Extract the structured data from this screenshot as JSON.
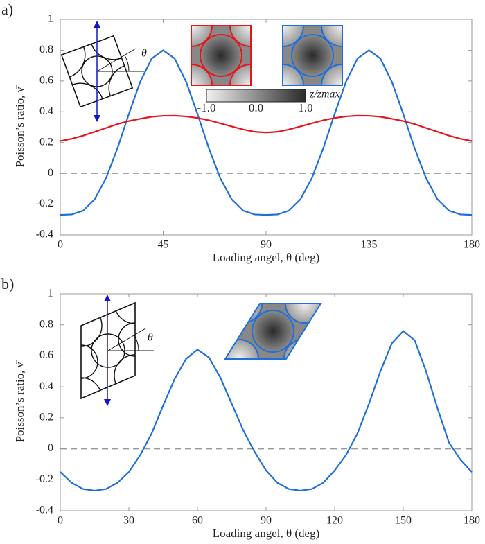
{
  "chart_data": [
    {
      "type": "line",
      "panel_label": "a)",
      "xlabel": "Loading angel, θ (deg)",
      "ylabel": "Poisson’s ratio, ν̄",
      "angle_label": "θ",
      "xlim": [
        0,
        180
      ],
      "xticks": [
        0,
        45,
        90,
        135,
        180
      ],
      "ylim": [
        -0.4,
        1
      ],
      "yticks": [
        -0.4,
        -0.2,
        0,
        0.2,
        0.4,
        0.6,
        0.8,
        1
      ],
      "zero_line": true,
      "x": [
        0,
        5,
        10,
        15,
        20,
        25,
        30,
        35,
        40,
        45,
        50,
        55,
        60,
        65,
        70,
        75,
        80,
        85,
        90,
        95,
        100,
        105,
        110,
        115,
        120,
        125,
        130,
        135,
        140,
        145,
        150,
        155,
        160,
        165,
        170,
        175,
        180
      ],
      "series": [
        {
          "color": "#1f6fd8",
          "values": [
            -0.27,
            -0.267,
            -0.242,
            -0.169,
            -0.032,
            0.162,
            0.386,
            0.596,
            0.746,
            0.8,
            0.746,
            0.596,
            0.386,
            0.162,
            -0.032,
            -0.169,
            -0.242,
            -0.267,
            -0.27,
            -0.267,
            -0.242,
            -0.169,
            -0.032,
            0.162,
            0.386,
            0.596,
            0.746,
            0.8,
            0.746,
            0.596,
            0.386,
            0.162,
            -0.032,
            -0.169,
            -0.242,
            -0.267,
            -0.27
          ]
        },
        {
          "color": "#e8141c",
          "values": [
            0.21,
            0.225,
            0.245,
            0.27,
            0.295,
            0.32,
            0.34,
            0.355,
            0.368,
            0.374,
            0.375,
            0.37,
            0.36,
            0.345,
            0.325,
            0.305,
            0.285,
            0.27,
            0.265,
            0.27,
            0.285,
            0.305,
            0.325,
            0.345,
            0.36,
            0.37,
            0.375,
            0.374,
            0.368,
            0.355,
            0.34,
            0.32,
            0.295,
            0.27,
            0.245,
            0.225,
            0.21
          ]
        }
      ],
      "colorbar": {
        "label": "z/zmax",
        "lim": [
          -1,
          1
        ],
        "ticks": [
          {
            "value": -1,
            "label": "-1.0"
          },
          {
            "value": 0,
            "label": "0.0"
          },
          {
            "value": 1,
            "label": "1.0"
          }
        ]
      }
    },
    {
      "type": "line",
      "panel_label": "b)",
      "xlabel": "Loading angel, θ (deg)",
      "ylabel": "Poisson’s ratio, ν̄",
      "angle_label": "θ",
      "xlim": [
        0,
        180
      ],
      "xticks": [
        0,
        30,
        60,
        90,
        120,
        150,
        180
      ],
      "ylim": [
        -0.4,
        1
      ],
      "yticks": [
        -0.4,
        -0.2,
        0,
        0.2,
        0.4,
        0.6,
        0.8,
        1
      ],
      "zero_line": true,
      "x": [
        0,
        5,
        10,
        15,
        20,
        25,
        30,
        35,
        40,
        45,
        50,
        55,
        60,
        65,
        70,
        75,
        80,
        85,
        90,
        95,
        100,
        105,
        110,
        115,
        120,
        125,
        130,
        135,
        140,
        145,
        150,
        155,
        160,
        165,
        170,
        175,
        180
      ],
      "series": [
        {
          "color": "#1f6fd8",
          "values": [
            -0.15,
            -0.22,
            -0.26,
            -0.27,
            -0.26,
            -0.22,
            -0.15,
            -0.04,
            0.1,
            0.28,
            0.45,
            0.58,
            0.64,
            0.59,
            0.46,
            0.29,
            0.12,
            -0.02,
            -0.14,
            -0.22,
            -0.26,
            -0.27,
            -0.26,
            -0.22,
            -0.14,
            -0.04,
            0.1,
            0.29,
            0.5,
            0.68,
            0.76,
            0.7,
            0.5,
            0.26,
            0.04,
            -0.07,
            -0.15
          ]
        }
      ]
    }
  ]
}
